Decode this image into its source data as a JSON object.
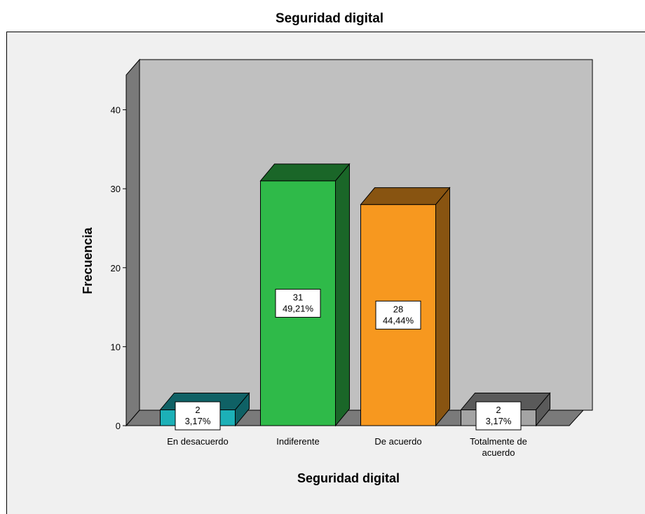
{
  "chart_data": {
    "type": "bar",
    "title": "Seguridad digital",
    "xlabel": "Seguridad digital",
    "ylabel": "Frecuencia",
    "categories": [
      "En desacuerdo",
      "Indiferente",
      "De acuerdo",
      "Totalmente de acuerdo"
    ],
    "values": [
      2,
      31,
      28,
      2
    ],
    "percent_labels": [
      "3,17%",
      "49,21%",
      "44,44%",
      "3,17%"
    ],
    "y_ticks": [
      0,
      10,
      20,
      30,
      40
    ],
    "ylim": [
      0,
      44.4
    ],
    "bar_colors": [
      "#1cb0b7",
      "#2fba49",
      "#f7981f",
      "#a4a4a4"
    ],
    "grid": false,
    "legend": "none",
    "style": "3d-bar"
  }
}
